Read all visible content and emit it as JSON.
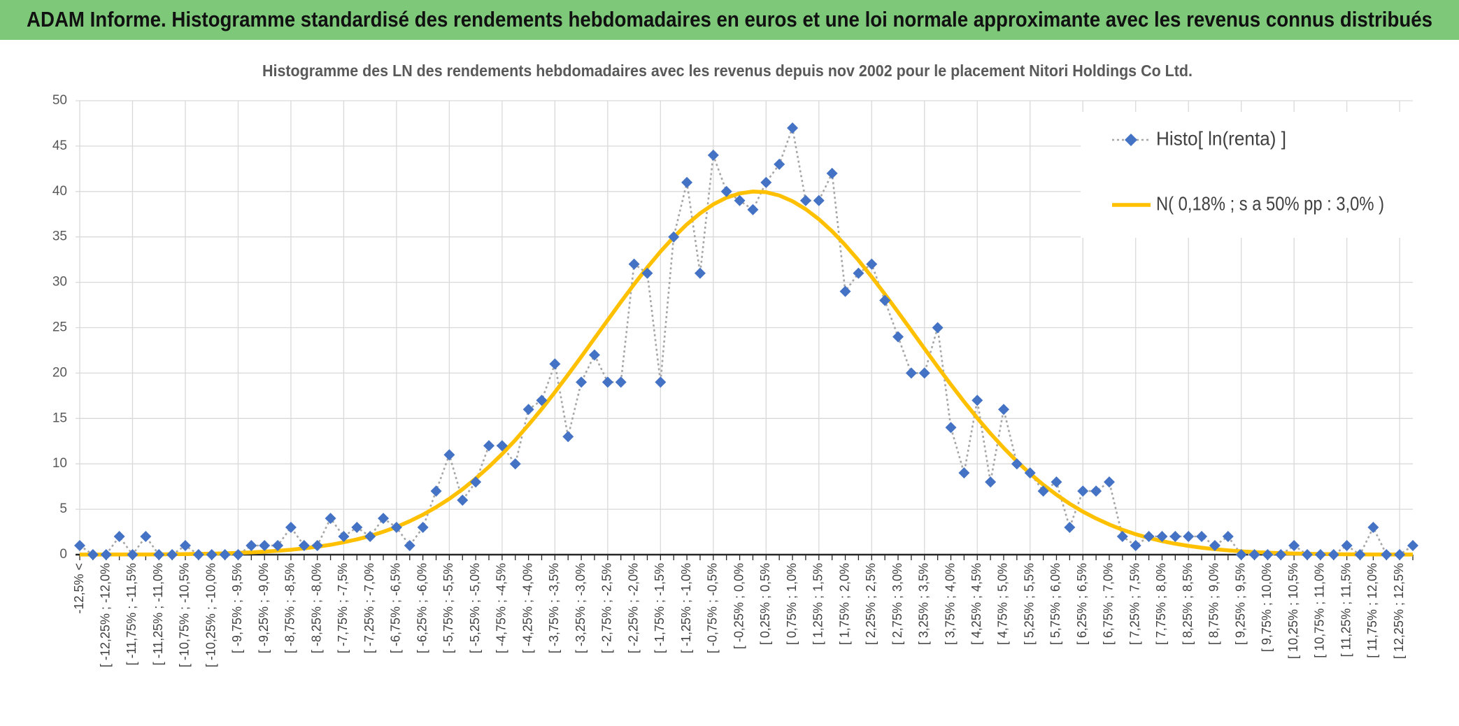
{
  "header": {
    "title": "ADAM Informe. Histogramme standardisé des rendements hebdomadaires en euros et une loi normale approximante avec les revenus connus distribués"
  },
  "chart_data": {
    "type": "line",
    "title": "Histogramme des LN des rendements hebdomadaires avec les revenus depuis nov 2002 pour le placement Nitori Holdings Co Ltd.",
    "categories": [
      "-12,5% <",
      null,
      "[ -12,25% ; -12,0%",
      null,
      "[ -11,75% ; -11,5%",
      null,
      "[ -11,25% ; -11,0%",
      null,
      "[ -10,75% ; -10,5%",
      null,
      "[ -10,25% ; -10,0%",
      null,
      "[ -9,75% ; -9,5%",
      null,
      "[ -9,25% ; -9,0%",
      null,
      "[ -8,75% ; -8,5%",
      null,
      "[ -8,25% ; -8,0%",
      null,
      "[ -7,75% ; -7,5%",
      null,
      "[ -7,25% ; -7,0%",
      null,
      "[ -6,75% ; -6,5%",
      null,
      "[ -6,25% ; -6,0%",
      null,
      "[ -5,75% ; -5,5%",
      null,
      "[ -5,25% ; -5,0%",
      null,
      "[ -4,75% ; -4,5%",
      null,
      "[ -4,25% ; -4,0%",
      null,
      "[ -3,75% ; -3,5%",
      null,
      "[ -3,25% ; -3,0%",
      null,
      "[ -2,75% ; -2,5%",
      null,
      "[ -2,25% ; -2,0%",
      null,
      "[ -1,75% ; -1,5%",
      null,
      "[ -1,25% ; -1,0%",
      null,
      "[ -0,75% ; -0,5%",
      null,
      "[ -0,25% ; 0,0%",
      null,
      "[ 0,25% ; 0,5%",
      null,
      "[ 0,75% ; 1,0%",
      null,
      "[ 1,25% ; 1,5%",
      null,
      "[ 1,75% ; 2,0%",
      null,
      "[ 2,25% ; 2,5%",
      null,
      "[ 2,75% ; 3,0%",
      null,
      "[ 3,25% ; 3,5%",
      null,
      "[ 3,75% ; 4,0%",
      null,
      "[ 4,25% ; 4,5%",
      null,
      "[ 4,75% ; 5,0%",
      null,
      "[ 5,25% ; 5,5%",
      null,
      "[ 5,75% ; 6,0%",
      null,
      "[ 6,25% ; 6,5%",
      null,
      "[ 6,75% ; 7,0%",
      null,
      "[ 7,25% ; 7,5%",
      null,
      "[ 7,75% ; 8,0%",
      null,
      "[ 8,25% ; 8,5%",
      null,
      "[ 8,75% ; 9,0%",
      null,
      "[ 9,25% ; 9,5%",
      null,
      "[ 9,75% ; 10,0%",
      null,
      "[ 10,25% ; 10,5%",
      null,
      "[ 10,75% ; 11,0%",
      null,
      "[ 11,25% ; 11,5%",
      null,
      "[ 11,75% ; 12,0%",
      null,
      "[ 12,25% ; 12,5%",
      null
    ],
    "series": [
      {
        "name": "Histo[ ln(renta) ]",
        "color": "#4472c4",
        "line_color": "#a6a6a6",
        "values": [
          1,
          0,
          0,
          2,
          0,
          2,
          0,
          0,
          1,
          0,
          0,
          0,
          0,
          1,
          1,
          1,
          3,
          1,
          1,
          4,
          2,
          3,
          2,
          4,
          3,
          1,
          3,
          7,
          11,
          6,
          8,
          12,
          12,
          10,
          16,
          17,
          21,
          13,
          19,
          22,
          19,
          19,
          32,
          31,
          19,
          35,
          41,
          31,
          44,
          40,
          39,
          38,
          41,
          43,
          47,
          39,
          39,
          42,
          29,
          31,
          32,
          28,
          24,
          20,
          20,
          25,
          14,
          9,
          17,
          8,
          16,
          10,
          9,
          7,
          8,
          3,
          7,
          7,
          8,
          2,
          1,
          2,
          2,
          2,
          2,
          2,
          1,
          2,
          0,
          0,
          0,
          0,
          1,
          0,
          0,
          0,
          1,
          0,
          3,
          0,
          0,
          1
        ]
      },
      {
        "name": "N( 0,18% ; s a 50% pp : 3,0% )",
        "color": "#ffc000",
        "values": [
          0.004,
          0.006,
          0.009,
          0.012,
          0.017,
          0.024,
          0.033,
          0.045,
          0.061,
          0.082,
          0.11,
          0.15,
          0.19,
          0.25,
          0.33,
          0.42,
          0.54,
          0.69,
          0.87,
          1.09,
          1.36,
          1.68,
          2.06,
          2.52,
          3.05,
          3.68,
          4.4,
          5.22,
          6.15,
          7.2,
          8.38,
          9.67,
          11.09,
          12.63,
          14.29,
          16.04,
          17.9,
          19.82,
          21.8,
          23.82,
          25.84,
          27.83,
          29.78,
          31.64,
          33.38,
          34.97,
          36.39,
          37.6,
          38.58,
          39.32,
          39.79,
          39.99,
          39.92,
          39.56,
          38.94,
          38.06,
          36.95,
          35.62,
          34.1,
          32.42,
          30.6,
          28.7,
          26.72,
          24.71,
          22.69,
          20.69,
          18.74,
          16.85,
          15.05,
          13.34,
          11.76,
          10.28,
          8.93,
          7.7,
          6.6,
          5.61,
          4.74,
          3.98,
          3.32,
          2.74,
          2.25,
          1.84,
          1.49,
          1.2,
          0.96,
          0.76,
          0.6,
          0.47,
          0.36,
          0.28,
          0.22,
          0.16,
          0.12,
          0.093,
          0.07,
          0.05,
          0.04,
          0.03,
          0.02,
          0.014,
          0.01,
          0.007
        ]
      }
    ],
    "ylim": [
      0,
      50
    ],
    "yticks": [
      0,
      5,
      10,
      15,
      20,
      25,
      30,
      35,
      40,
      45,
      50
    ],
    "grid": true,
    "legend": "top-right"
  }
}
